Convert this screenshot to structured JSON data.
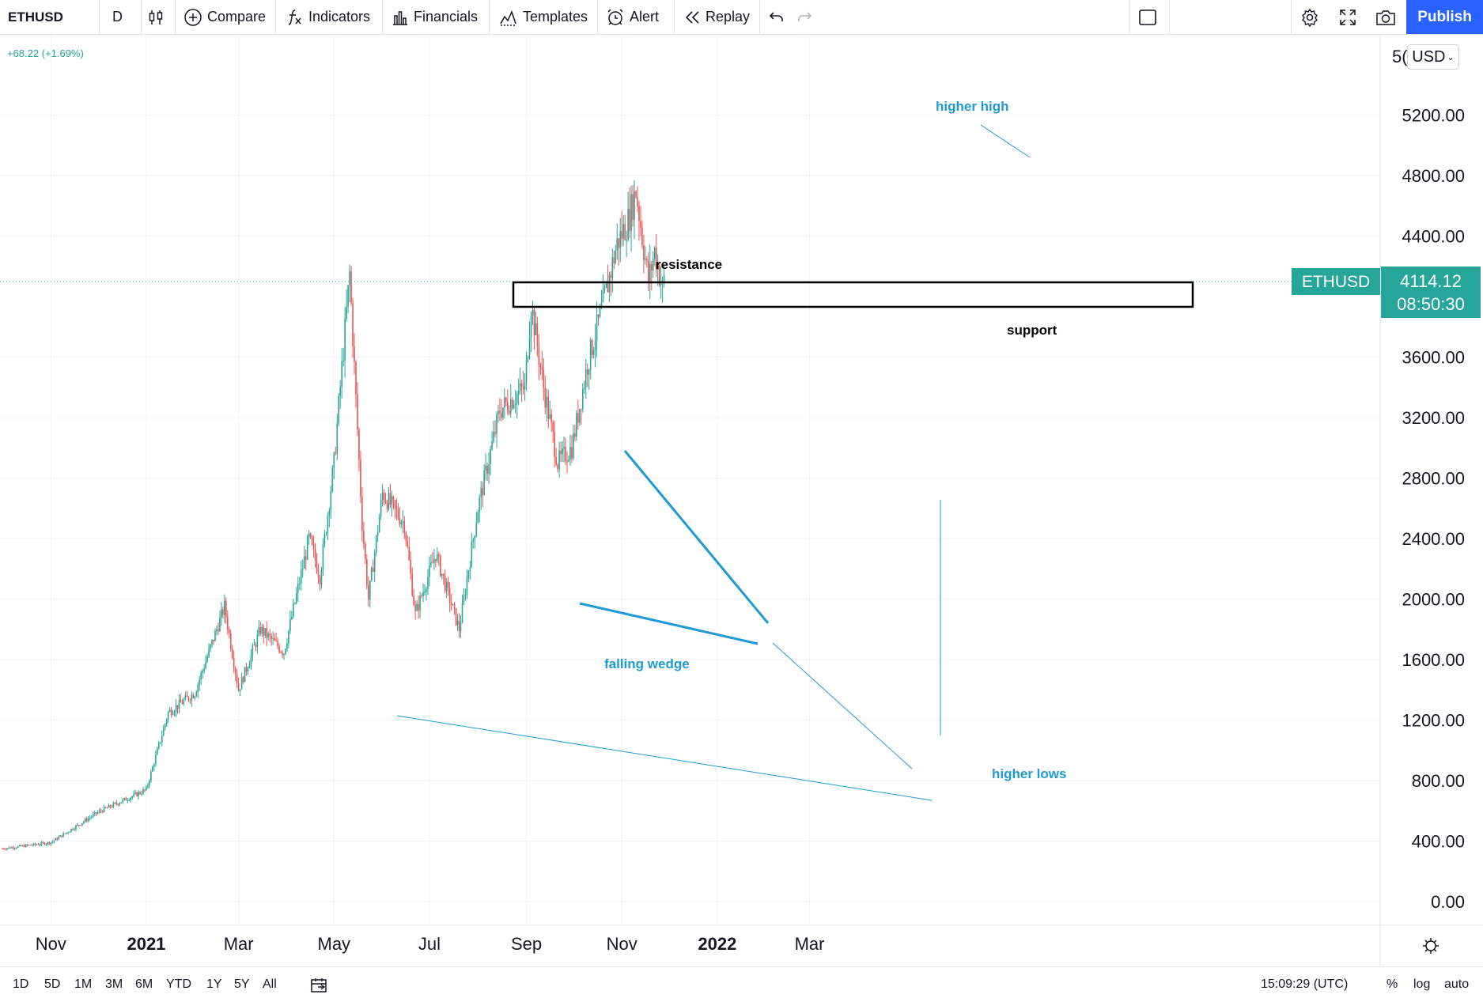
{
  "toolbar": {
    "symbol": "ETHUSD",
    "interval": "D",
    "compare": "Compare",
    "indicators": "Indicators",
    "financials": "Financials",
    "templates": "Templates",
    "alert": "Alert",
    "replay": "Replay",
    "publish": "Publish"
  },
  "header": {
    "change": "+68.22 (+1.69%)"
  },
  "price_axis": {
    "currency": "USD",
    "ticks": [
      "5200.00",
      "4800.00",
      "4400.00",
      "3600.00",
      "3200.00",
      "2800.00",
      "2400.00",
      "2000.00",
      "1600.00",
      "1200.00",
      "800.00",
      "400.00",
      "0.00"
    ],
    "top_tick_partial": "5("
  },
  "price_label": {
    "symbol": "ETHUSD",
    "price": "4114.12",
    "countdown": "08:50:30"
  },
  "time_axis": [
    "Nov",
    "2021",
    "Mar",
    "May",
    "Jul",
    "Sep",
    "Nov",
    "2022",
    "Mar"
  ],
  "bottom": {
    "ranges": [
      "1D",
      "5D",
      "1M",
      "3M",
      "6M",
      "YTD",
      "1Y",
      "5Y",
      "All"
    ],
    "clock": "15:09:29 (UTC)",
    "percent": "%",
    "log": "log",
    "auto": "auto"
  },
  "annotations": {
    "resistance": "resistance",
    "support": "support",
    "higher_high": "higher high",
    "falling_wedge": "falling wedge",
    "higher_lows": "higher lows"
  },
  "colors": {
    "up": "#26a69a",
    "down": "#ef5350",
    "accent": "#2962ff",
    "annotation": "#1e9ad6",
    "last_price_bg": "#26a69a"
  },
  "chart_data": {
    "type": "candlestick",
    "symbol": "ETHUSD",
    "interval": "D",
    "ylim": [
      0,
      5400
    ],
    "x_ticks": [
      "Nov",
      "2021",
      "Mar",
      "May",
      "Jul",
      "Sep",
      "Nov",
      "2022",
      "Mar"
    ],
    "last_price": 4114.12,
    "change": 68.22,
    "change_pct": 1.69,
    "key_levels": {
      "resistance_zone": [
        3860,
        4160
      ]
    },
    "trend_points": [
      {
        "date": "2020-10-01",
        "close": 350
      },
      {
        "date": "2020-11-01",
        "close": 390
      },
      {
        "date": "2020-12-01",
        "close": 590
      },
      {
        "date": "2021-01-01",
        "close": 740
      },
      {
        "date": "2021-01-15",
        "close": 1250
      },
      {
        "date": "2021-02-01",
        "close": 1380
      },
      {
        "date": "2021-02-20",
        "close": 1950
      },
      {
        "date": "2021-03-01",
        "close": 1400
      },
      {
        "date": "2021-03-15",
        "close": 1800
      },
      {
        "date": "2021-03-30",
        "close": 1650
      },
      {
        "date": "2021-04-15",
        "close": 2400
      },
      {
        "date": "2021-04-22",
        "close": 2150
      },
      {
        "date": "2021-05-01",
        "close": 2900
      },
      {
        "date": "2021-05-11",
        "close": 4150
      },
      {
        "date": "2021-05-19",
        "close": 2500
      },
      {
        "date": "2021-05-23",
        "close": 2000
      },
      {
        "date": "2021-06-01",
        "close": 2700
      },
      {
        "date": "2021-06-15",
        "close": 2500
      },
      {
        "date": "2021-06-22",
        "close": 1900
      },
      {
        "date": "2021-07-05",
        "close": 2300
      },
      {
        "date": "2021-07-20",
        "close": 1800
      },
      {
        "date": "2021-08-01",
        "close": 2600
      },
      {
        "date": "2021-08-15",
        "close": 3250
      },
      {
        "date": "2021-08-31",
        "close": 3400
      },
      {
        "date": "2021-09-04",
        "close": 3950
      },
      {
        "date": "2021-09-12",
        "close": 3400
      },
      {
        "date": "2021-09-21",
        "close": 2900
      },
      {
        "date": "2021-09-30",
        "close": 3000
      },
      {
        "date": "2021-10-10",
        "close": 3550
      },
      {
        "date": "2021-10-20",
        "close": 3950
      },
      {
        "date": "2021-10-29",
        "close": 4350
      },
      {
        "date": "2021-11-05",
        "close": 4500
      },
      {
        "date": "2021-11-10",
        "close": 4700
      },
      {
        "date": "2021-11-18",
        "close": 4100
      },
      {
        "date": "2021-11-22",
        "close": 4300
      },
      {
        "date": "2021-11-27",
        "close": 4050
      },
      {
        "date": "2021-11-28",
        "close": 4114.12
      }
    ]
  }
}
